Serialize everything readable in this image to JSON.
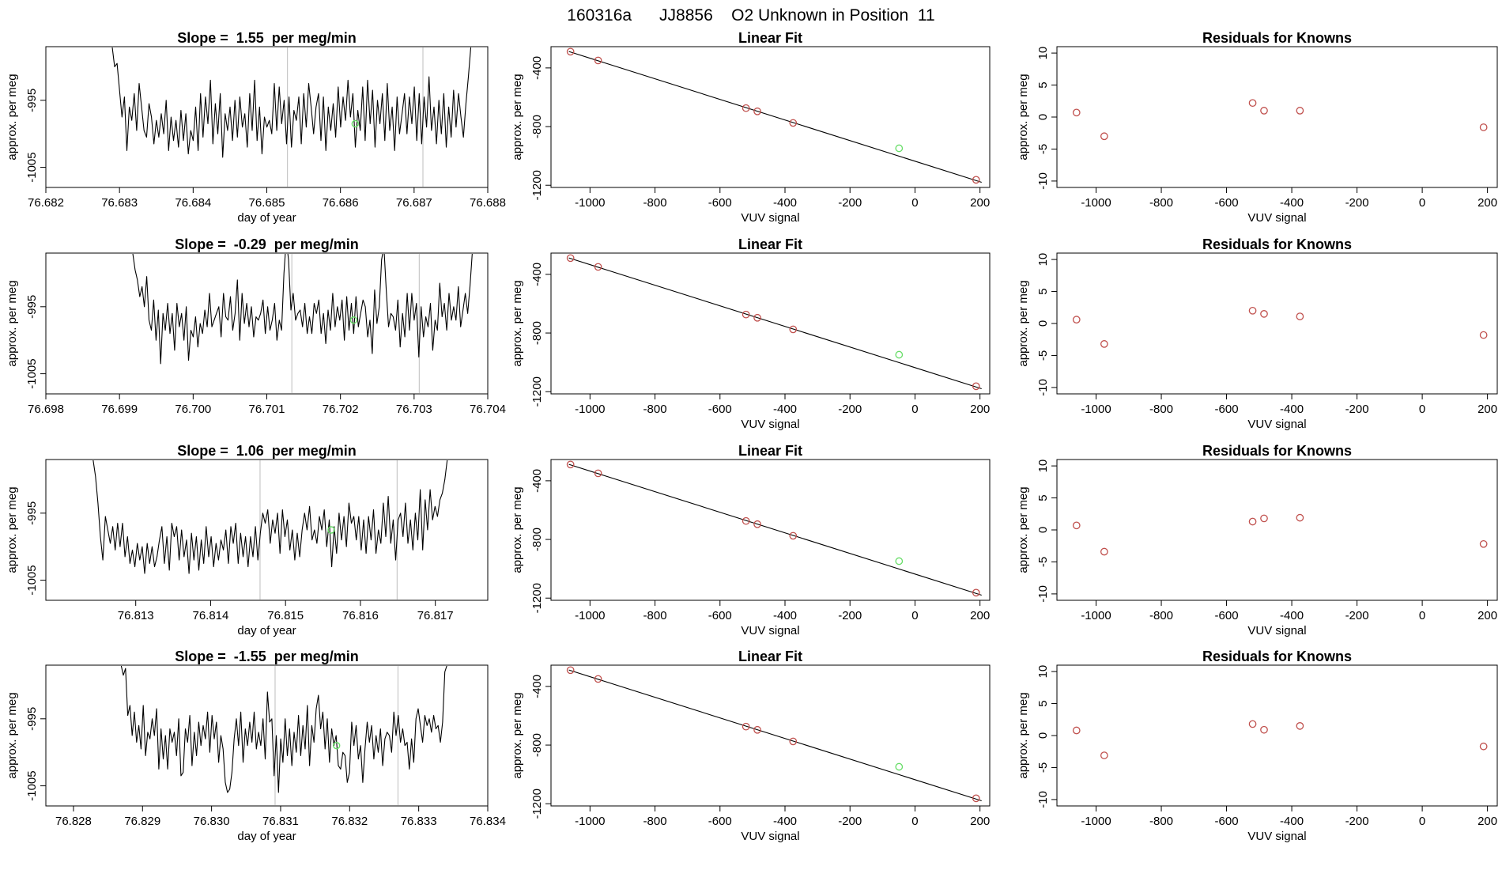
{
  "page_title": "160316a      JJ8856    O2 Unknown in Position  11",
  "colors": {
    "axis": "#000000",
    "trace": "#000000",
    "known_point": "#c0504d",
    "unknown_point": "#66dd66",
    "marker_line": "#c8c8c8"
  },
  "chart_data": [
    {
      "type": "line",
      "title": "Slope =  1.55  per meg/min",
      "xlabel": "day of year",
      "ylabel": "approx. per meg",
      "xlim": [
        76.682,
        76.688
      ],
      "ylim": [
        -1008,
        -987
      ],
      "x_ticks": [
        "76.682",
        "76.683",
        "76.684",
        "76.685",
        "76.686",
        "76.687",
        "76.688"
      ],
      "y_ticks": [
        "-1005",
        "-995"
      ],
      "y_tick_values": [
        -1005,
        -995
      ],
      "trace_start": 76.6829,
      "trace_end": 76.68777,
      "marker_lines_x": [
        76.68528,
        76.68712
      ],
      "highlight_point": [
        76.6862,
        -998.5
      ],
      "trace_y": [
        -987,
        -990,
        -989.5,
        -993.5,
        -997.5,
        -994.5,
        -1002.5,
        -996,
        -998,
        -994,
        -999.5,
        -992.5,
        -996,
        -999.5,
        -1000.5,
        -995.5,
        -997.5,
        -1001.5,
        -998,
        -1000.5,
        -997,
        -1000,
        -995,
        -1002.5,
        -997.5,
        -1001,
        -998,
        -1002,
        -996.5,
        -1001,
        -997,
        -1003,
        -999.5,
        -1001,
        -996,
        -1002.5,
        -994,
        -1000.5,
        -994.5,
        -998.5,
        -992,
        -1001.5,
        -995.5,
        -1000,
        -994,
        -1003.5,
        -997,
        -999.5,
        -996,
        -1001,
        -995,
        -1000.5,
        -994.5,
        -999,
        -997,
        -1002,
        -994,
        -999.5,
        -992,
        -1001,
        -996,
        -1003,
        -997.5,
        -999,
        -998,
        -1000,
        -992.5,
        -999.5,
        -993,
        -998.5,
        -995,
        -1001.5,
        -994.5,
        -1002,
        -996.5,
        -998,
        -994.5,
        -1001.5,
        -994,
        -999,
        -992.5,
        -996,
        -1000,
        -996,
        -994,
        -1001,
        -994.5,
        -1002.5,
        -996,
        -999.5,
        -995.5,
        -1000.5,
        -993,
        -999,
        -994.5,
        -998,
        -992,
        -997.5,
        -994,
        -1002,
        -996.5,
        -999.5,
        -993,
        -1001,
        -992,
        -998.5,
        -993.5,
        -1002,
        -995,
        -998.5,
        -994,
        -1001,
        -992.5,
        -999.5,
        -996,
        -1002.5,
        -994.5,
        -1000,
        -997,
        -994,
        -1000,
        -994.5,
        -998.5,
        -993,
        -1001,
        -994,
        -1001.5,
        -994.5,
        -999,
        -991.5,
        -999.5,
        -996,
        -1001.5,
        -995,
        -1000,
        -994,
        -1002,
        -996,
        -1000.5,
        -993.5,
        -999,
        -994,
        -997.5,
        -1000.5,
        -995.5,
        -991.5,
        -987
      ]
    },
    {
      "type": "line",
      "title": "Slope =  -0.29  per meg/min",
      "xlabel": "",
      "ylabel": "approx. per meg",
      "xlim": [
        76.698,
        76.704
      ],
      "ylim": [
        -1008,
        -987
      ],
      "x_ticks": [
        "76.698",
        "76.699",
        "76.700",
        "76.701",
        "76.702",
        "76.703",
        "76.704"
      ],
      "y_ticks": [
        "-1005",
        "-995"
      ],
      "y_tick_values": [
        -1005,
        -995
      ],
      "trace_start": 76.69918,
      "trace_end": 76.70379,
      "marker_lines_x": [
        76.70134,
        76.70307
      ],
      "highlight_point": [
        76.70218,
        -997
      ],
      "trace_y": [
        -987,
        -989.5,
        -991,
        -993.5,
        -992,
        -995,
        -990.5,
        -997,
        -998.5,
        -994,
        -1000,
        -995.5,
        -1003.5,
        -996,
        -998.5,
        -994.5,
        -999,
        -996,
        -1001.5,
        -994.5,
        -998,
        -996,
        -1000,
        -995,
        -1003,
        -998.5,
        -999.5,
        -996.5,
        -1001,
        -997.5,
        -999,
        -995.5,
        -998,
        -993,
        -998,
        -997,
        -996,
        -995,
        -999.5,
        -993,
        -996.5,
        -997,
        -993.5,
        -998.5,
        -996,
        -991,
        -1000,
        -993,
        -997.5,
        -994.5,
        -998,
        -995,
        -999.5,
        -996.5,
        -997,
        -996,
        -994,
        -999,
        -995,
        -998.5,
        -997,
        -994.5,
        -1000,
        -997,
        -998.5,
        -990,
        -985,
        -988,
        -995.5,
        -993,
        -997,
        -996,
        -995.5,
        -998,
        -994.5,
        -999,
        -996.5,
        -999,
        -994.5,
        -996,
        -994,
        -999,
        -996,
        -1000.5,
        -995.5,
        -998.5,
        -993,
        -998,
        -995,
        -997,
        -994,
        -1000,
        -993.5,
        -998.5,
        -994.5,
        -999,
        -993.5,
        -998,
        -996,
        -994,
        -995,
        -999.5,
        -997,
        -1002,
        -992.5,
        -997.5,
        -995,
        -988,
        -986,
        -992.5,
        -998,
        -996,
        -996.5,
        -998.5,
        -994,
        -1001,
        -996,
        -999.5,
        -993,
        -998.5,
        -993,
        -997,
        -994.5,
        -1002.5,
        -995,
        -999.5,
        -996.5,
        -998,
        -994.5,
        -1001.5,
        -997,
        -998.5,
        -991.5,
        -996.5,
        -994.5,
        -998.5,
        -993,
        -997,
        -995,
        -997,
        -992,
        -998,
        -995.5,
        -993,
        -996,
        -992,
        -987
      ]
    },
    {
      "type": "line",
      "title": "Slope =  1.06  per meg/min",
      "xlabel": "day of year",
      "ylabel": "approx. per meg",
      "xlim": [
        76.8118,
        76.8177
      ],
      "ylim": [
        -1008,
        -987
      ],
      "x_ticks": [
        "76.813",
        "76.814",
        "76.815",
        "76.816",
        "76.817"
      ],
      "y_ticks": [
        "-1005",
        "-995"
      ],
      "y_tick_values": [
        -1005,
        -995
      ],
      "trace_start": 76.81243,
      "trace_end": 76.81716,
      "marker_lines_x": [
        76.81466,
        76.81649
      ],
      "highlight_point": [
        76.81561,
        -997.5
      ],
      "trace_y": [
        -987,
        -989.5,
        -993.5,
        -998.5,
        -1002,
        -995.5,
        -997.5,
        -999.5,
        -997,
        -1000.5,
        -996.5,
        -1000,
        -996.5,
        -1001.5,
        -998.5,
        -1002.5,
        -1000.5,
        -1003,
        -999.5,
        -1002,
        -1000,
        -1004,
        -999.5,
        -1002.5,
        -1000,
        -1003,
        -1001.5,
        -999,
        -997,
        -1002.5,
        -998.5,
        -1003.5,
        -996.5,
        -998.5,
        -997,
        -1002,
        -997.5,
        -1001.5,
        -999,
        -1004,
        -998,
        -1002,
        -998.5,
        -1003.5,
        -999,
        -1002.5,
        -997,
        -1001.5,
        -998.5,
        -1003,
        -999.5,
        -1002,
        -999,
        -1000.5,
        -997.5,
        -1002.5,
        -997,
        -999.5,
        -996.5,
        -1002.5,
        -998,
        -1001.5,
        -998.5,
        -1003,
        -998.5,
        -1001.5,
        -997,
        -1002,
        -998,
        -995,
        -996.5,
        -994.5,
        -999.5,
        -996,
        -998,
        -995,
        -1001,
        -994.5,
        -998.5,
        -996,
        -1000.5,
        -997.5,
        -1002,
        -998,
        -1001.5,
        -997.5,
        -995,
        -997.5,
        -994,
        -999,
        -997.5,
        -999.5,
        -995.5,
        -997.5,
        -994.5,
        -1000,
        -996,
        -1003,
        -997,
        -1001,
        -995,
        -999,
        -995.5,
        -1000,
        -993.5,
        -996.5,
        -995.5,
        -999,
        -995.5,
        -1000.5,
        -996,
        -1001,
        -995.5,
        -999,
        -994.5,
        -1001,
        -997.5,
        -999.5,
        -993.5,
        -998.5,
        -992.5,
        -999.5,
        -996,
        -1002,
        -996,
        -995,
        -998.5,
        -993.5,
        -999.5,
        -996,
        -1000.5,
        -995,
        -999,
        -991.5,
        -1000.5,
        -993,
        -997.5,
        -991.5,
        -996,
        -994,
        -995.5,
        -993,
        -992,
        -990,
        -987
      ]
    },
    {
      "type": "line",
      "title": "Slope =  -1.55  per meg/min",
      "xlabel": "day of year",
      "ylabel": "approx. per meg",
      "xlim": [
        76.8276,
        76.834
      ],
      "ylim": [
        -1008,
        -987
      ],
      "x_ticks": [
        "76.828",
        "76.829",
        "76.830",
        "76.831",
        "76.832",
        "76.833",
        "76.834"
      ],
      "y_ticks": [
        "-1005",
        "-995"
      ],
      "y_tick_values": [
        -1005,
        -995
      ],
      "trace_start": 76.82869,
      "trace_end": 76.83341,
      "marker_lines_x": [
        76.83092,
        76.8327
      ],
      "highlight_point": [
        76.83181,
        -999
      ],
      "trace_y": [
        -987,
        -988.5,
        -987.5,
        -994.5,
        -993,
        -997.5,
        -994,
        -998.5,
        -996,
        -999.5,
        -993,
        -1000.5,
        -997,
        -998,
        -995,
        -997.5,
        -993.5,
        -1002.5,
        -996.5,
        -1001,
        -997.5,
        -1002.5,
        -996.5,
        -998.5,
        -997,
        -1000.5,
        -995,
        -1003.5,
        -1003,
        -996.5,
        -998.5,
        -994.5,
        -1002,
        -997,
        -1000.5,
        -995.5,
        -999,
        -996,
        -998,
        -994,
        -1000,
        -994.5,
        -998,
        -995.5,
        -1001.5,
        -997.5,
        -999.5,
        -1004.5,
        -1006,
        -1005.5,
        -1003,
        -998,
        -995,
        -999,
        -994,
        -1001.5,
        -996.5,
        -999,
        -995.5,
        -998.5,
        -994,
        -999.5,
        -997,
        -999,
        -995,
        -1001,
        -991,
        -995.5,
        -995,
        -1003.5,
        -997.5,
        -1006,
        -998,
        -1001.5,
        -995,
        -1000.5,
        -996.5,
        -1002,
        -997,
        -1000,
        -994.5,
        -1000.5,
        -996,
        -999.5,
        -993,
        -1002,
        -996,
        -998.5,
        -993.5,
        -991.5,
        -996.5,
        -994,
        -999.5,
        -995,
        -1001.5,
        -996.5,
        -999,
        -997.5,
        -1002,
        -1002.5,
        -1000,
        -1000.5,
        -1004.5,
        -1003,
        -995.5,
        -999,
        -996,
        -1001,
        -999,
        -1004.5,
        -999.5,
        -995.5,
        -998.5,
        -996,
        -1001,
        -997.5,
        -1000,
        -996.5,
        -1002,
        -998,
        -997,
        -997.5,
        -1000,
        -994,
        -997.5,
        -994.5,
        -998.5,
        -996.5,
        -999,
        -998.5,
        -1002.5,
        -998,
        -1001.5,
        -995,
        -993.5,
        -996,
        -998.5,
        -994.5,
        -996,
        -995,
        -997,
        -994.5,
        -996.5,
        -996,
        -998.5,
        -995.5,
        -988,
        -987
      ]
    },
    {
      "type": "scatter",
      "title": "Linear Fit",
      "xlabel": "VUV signal",
      "ylabel": "approx. per meg",
      "xlim": [
        -1120,
        230
      ],
      "ylim": [
        -1215,
        -255
      ],
      "x_ticks": [
        -1000,
        -800,
        -600,
        -400,
        -200,
        0,
        200
      ],
      "y_ticks": [
        -1200,
        -800,
        -400
      ],
      "fit_line": {
        "x": [
          -1065,
          205
        ],
        "y": [
          -288,
          -1180
        ]
      },
      "knowns": {
        "x": [
          -1060,
          -975,
          -520,
          -485,
          -375,
          188
        ],
        "y": [
          -289,
          -349,
          -674,
          -696,
          -775,
          -1163
        ]
      },
      "unknown": {
        "x": [
          -49
        ],
        "y": [
          -948
        ]
      }
    },
    {
      "type": "scatter",
      "title": "Linear Fit",
      "xlabel": "VUV signal",
      "ylabel": "approx. per meg",
      "xlim": [
        -1120,
        230
      ],
      "ylim": [
        -1215,
        -255
      ],
      "x_ticks": [
        -1000,
        -800,
        -600,
        -400,
        -200,
        0,
        200
      ],
      "y_ticks": [
        -1200,
        -800,
        -400
      ],
      "fit_line": {
        "x": [
          -1065,
          205
        ],
        "y": [
          -288,
          -1180
        ]
      },
      "knowns": {
        "x": [
          -1060,
          -975,
          -520,
          -485,
          -375,
          188
        ],
        "y": [
          -289,
          -349,
          -674,
          -696,
          -775,
          -1163
        ]
      },
      "unknown": {
        "x": [
          -49
        ],
        "y": [
          -948
        ]
      }
    },
    {
      "type": "scatter",
      "title": "Linear Fit",
      "xlabel": "VUV signal",
      "ylabel": "approx. per meg",
      "xlim": [
        -1120,
        230
      ],
      "ylim": [
        -1215,
        -255
      ],
      "x_ticks": [
        -1000,
        -800,
        -600,
        -400,
        -200,
        0,
        200
      ],
      "y_ticks": [
        -1200,
        -800,
        -400
      ],
      "fit_line": {
        "x": [
          -1065,
          205
        ],
        "y": [
          -288,
          -1180
        ]
      },
      "knowns": {
        "x": [
          -1060,
          -975,
          -520,
          -485,
          -375,
          188
        ],
        "y": [
          -289,
          -349,
          -674,
          -696,
          -775,
          -1163
        ]
      },
      "unknown": {
        "x": [
          -49
        ],
        "y": [
          -948
        ]
      }
    },
    {
      "type": "scatter",
      "title": "Linear Fit",
      "xlabel": "VUV signal",
      "ylabel": "approx. per meg",
      "xlim": [
        -1120,
        230
      ],
      "ylim": [
        -1215,
        -255
      ],
      "x_ticks": [
        -1000,
        -800,
        -600,
        -400,
        -200,
        0,
        200
      ],
      "y_ticks": [
        -1200,
        -800,
        -400
      ],
      "fit_line": {
        "x": [
          -1065,
          205
        ],
        "y": [
          -288,
          -1180
        ]
      },
      "knowns": {
        "x": [
          -1060,
          -975,
          -520,
          -485,
          -375,
          188
        ],
        "y": [
          -289,
          -349,
          -674,
          -696,
          -775,
          -1163
        ]
      },
      "unknown": {
        "x": [
          -49
        ],
        "y": [
          -948
        ]
      }
    },
    {
      "type": "scatter",
      "title": "Residuals for Knowns",
      "xlabel": "VUV signal",
      "ylabel": "approx. per meg",
      "xlim": [
        -1120,
        230
      ],
      "ylim": [
        -11,
        11
      ],
      "x_ticks": [
        -1000,
        -800,
        -600,
        -400,
        -200,
        0,
        200
      ],
      "y_ticks": [
        -10,
        -5,
        0,
        5,
        10
      ],
      "knowns": {
        "x": [
          -1060,
          -975,
          -520,
          -485,
          -375,
          188
        ],
        "y": [
          0.7,
          -3.0,
          2.2,
          1.0,
          1.0,
          -1.6
        ]
      }
    },
    {
      "type": "scatter",
      "title": "Residuals for Knowns",
      "xlabel": "VUV signal",
      "ylabel": "approx. per meg",
      "xlim": [
        -1120,
        230
      ],
      "ylim": [
        -11,
        11
      ],
      "x_ticks": [
        -1000,
        -800,
        -600,
        -400,
        -200,
        0,
        200
      ],
      "y_ticks": [
        -10,
        -5,
        0,
        5,
        10
      ],
      "knowns": {
        "x": [
          -1060,
          -975,
          -520,
          -485,
          -375,
          188
        ],
        "y": [
          0.6,
          -3.2,
          2.0,
          1.5,
          1.1,
          -1.8
        ]
      }
    },
    {
      "type": "scatter",
      "title": "Residuals for Knowns",
      "xlabel": "VUV signal",
      "ylabel": "approx. per meg",
      "xlim": [
        -1120,
        230
      ],
      "ylim": [
        -11,
        11
      ],
      "x_ticks": [
        -1000,
        -800,
        -600,
        -400,
        -200,
        0,
        200
      ],
      "y_ticks": [
        -10,
        -5,
        0,
        5,
        10
      ],
      "knowns": {
        "x": [
          -1060,
          -975,
          -520,
          -485,
          -375,
          188
        ],
        "y": [
          0.7,
          -3.4,
          1.3,
          1.8,
          1.9,
          -2.2
        ]
      }
    },
    {
      "type": "scatter",
      "title": "Residuals for Knowns",
      "xlabel": "VUV signal",
      "ylabel": "approx. per meg",
      "xlim": [
        -1120,
        230
      ],
      "ylim": [
        -11,
        11
      ],
      "x_ticks": [
        -1000,
        -800,
        -600,
        -400,
        -200,
        0,
        200
      ],
      "y_ticks": [
        -10,
        -5,
        0,
        5,
        10
      ],
      "knowns": {
        "x": [
          -1060,
          -975,
          -520,
          -485,
          -375,
          188
        ],
        "y": [
          0.8,
          -3.1,
          1.8,
          0.9,
          1.5,
          -1.7
        ]
      }
    }
  ]
}
